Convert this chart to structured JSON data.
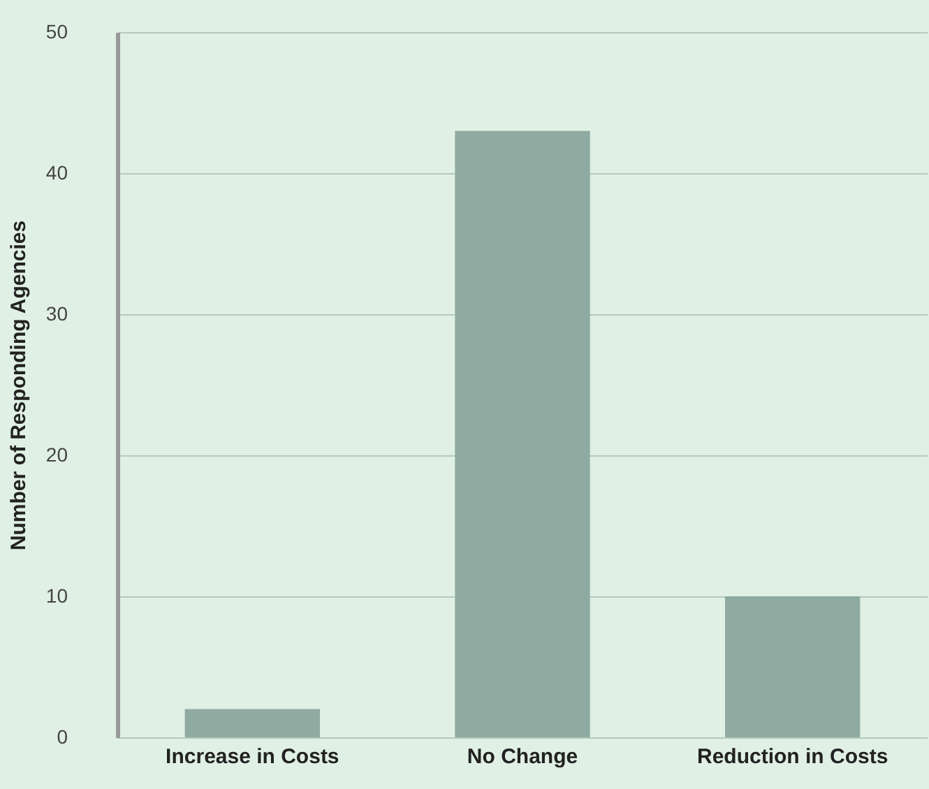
{
  "chart_data": {
    "type": "bar",
    "ylabel": "Number of Responding Agencies",
    "categories": [
      "Increase in Costs",
      "No Change",
      "Reduction in Costs"
    ],
    "values": [
      2,
      43,
      10
    ],
    "color": "#8faaa0",
    "ylim": [
      0,
      50
    ],
    "yticks": [
      0,
      10,
      20,
      30,
      40,
      50
    ],
    "grid": "y"
  }
}
